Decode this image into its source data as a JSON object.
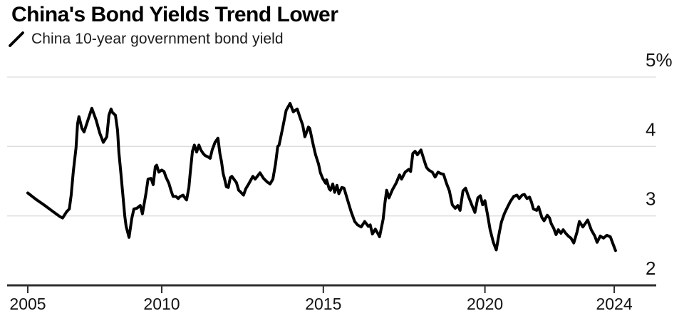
{
  "header": {
    "title": "China's Bond Yields Trend Lower"
  },
  "legend": {
    "label": "China 10-year government bond yield",
    "marker": "diagonal-line",
    "marker_color": "#000000"
  },
  "chart_data": {
    "type": "line",
    "title": "China's Bond Yields Trend Lower",
    "xlabel": "",
    "ylabel": "",
    "unit": "%",
    "xlim": [
      2005,
      2024.4
    ],
    "ylim": [
      2,
      5
    ],
    "grid": "horizontal",
    "legend_position": "top-left",
    "colors": {
      "line": "#000000",
      "grid": "#dcdcdc",
      "axis": "#2e2e2e",
      "tick_label": "#141414"
    },
    "y_ticks": [
      {
        "label": "5%",
        "value": 5,
        "gridline": true
      },
      {
        "label": "4",
        "value": 4,
        "gridline": true
      },
      {
        "label": "3",
        "value": 3,
        "gridline": true
      },
      {
        "label": "2",
        "value": 2,
        "gridline": false
      }
    ],
    "x_ticks": [
      {
        "label": "2005",
        "year": 2005
      },
      {
        "label": "2010",
        "year": 2010
      },
      {
        "label": "2015",
        "year": 2015
      },
      {
        "label": "2020",
        "year": 2020
      },
      {
        "label": "2024",
        "year": 2024
      }
    ],
    "series": [
      {
        "name": "China 10-year government bond yield",
        "color": "#000000",
        "points": [
          [
            2005.0,
            3.33
          ],
          [
            2005.3,
            3.24
          ],
          [
            2005.6,
            3.16
          ],
          [
            2005.95,
            3.06
          ],
          [
            2006.2,
            2.99
          ],
          [
            2006.3,
            2.97
          ],
          [
            2006.45,
            3.06
          ],
          [
            2006.55,
            3.1
          ],
          [
            2006.62,
            3.3
          ],
          [
            2006.7,
            3.64
          ],
          [
            2006.8,
            3.98
          ],
          [
            2006.86,
            4.33
          ],
          [
            2006.91,
            4.43
          ],
          [
            2007.02,
            4.26
          ],
          [
            2007.1,
            4.21
          ],
          [
            2007.23,
            4.36
          ],
          [
            2007.39,
            4.55
          ],
          [
            2007.55,
            4.38
          ],
          [
            2007.69,
            4.19
          ],
          [
            2007.82,
            4.06
          ],
          [
            2007.95,
            4.14
          ],
          [
            2008.03,
            4.45
          ],
          [
            2008.11,
            4.54
          ],
          [
            2008.16,
            4.49
          ],
          [
            2008.27,
            4.45
          ],
          [
            2008.35,
            4.23
          ],
          [
            2008.4,
            3.92
          ],
          [
            2008.48,
            3.6
          ],
          [
            2008.54,
            3.34
          ],
          [
            2008.62,
            3.0
          ],
          [
            2008.67,
            2.85
          ],
          [
            2008.78,
            2.69
          ],
          [
            2008.88,
            2.96
          ],
          [
            2008.96,
            3.1
          ],
          [
            2009.07,
            3.11
          ],
          [
            2009.2,
            3.15
          ],
          [
            2009.28,
            3.03
          ],
          [
            2009.41,
            3.32
          ],
          [
            2009.49,
            3.53
          ],
          [
            2009.6,
            3.54
          ],
          [
            2009.68,
            3.45
          ],
          [
            2009.76,
            3.71
          ],
          [
            2009.81,
            3.73
          ],
          [
            2009.89,
            3.63
          ],
          [
            2010.0,
            3.66
          ],
          [
            2010.07,
            3.64
          ],
          [
            2010.13,
            3.56
          ],
          [
            2010.22,
            3.47
          ],
          [
            2010.29,
            3.36
          ],
          [
            2010.35,
            3.28
          ],
          [
            2010.44,
            3.28
          ],
          [
            2010.51,
            3.25
          ],
          [
            2010.57,
            3.28
          ],
          [
            2010.66,
            3.3
          ],
          [
            2010.73,
            3.25
          ],
          [
            2010.77,
            3.23
          ],
          [
            2010.84,
            3.41
          ],
          [
            2010.88,
            3.61
          ],
          [
            2010.95,
            3.93
          ],
          [
            2011.01,
            4.02
          ],
          [
            2011.08,
            3.92
          ],
          [
            2011.15,
            4.02
          ],
          [
            2011.21,
            3.95
          ],
          [
            2011.28,
            3.9
          ],
          [
            2011.34,
            3.87
          ],
          [
            2011.43,
            3.85
          ],
          [
            2011.5,
            3.83
          ],
          [
            2011.56,
            3.95
          ],
          [
            2011.65,
            4.06
          ],
          [
            2011.74,
            4.12
          ],
          [
            2011.8,
            3.9
          ],
          [
            2011.85,
            3.78
          ],
          [
            2011.9,
            3.61
          ],
          [
            2011.95,
            3.52
          ],
          [
            2012.0,
            3.42
          ],
          [
            2012.06,
            3.41
          ],
          [
            2012.12,
            3.55
          ],
          [
            2012.17,
            3.57
          ],
          [
            2012.23,
            3.53
          ],
          [
            2012.31,
            3.48
          ],
          [
            2012.38,
            3.37
          ],
          [
            2012.45,
            3.34
          ],
          [
            2012.53,
            3.3
          ],
          [
            2012.6,
            3.39
          ],
          [
            2012.69,
            3.46
          ],
          [
            2012.82,
            3.57
          ],
          [
            2012.89,
            3.53
          ],
          [
            2013.04,
            3.62
          ],
          [
            2013.15,
            3.54
          ],
          [
            2013.26,
            3.49
          ],
          [
            2013.35,
            3.46
          ],
          [
            2013.44,
            3.53
          ],
          [
            2013.52,
            3.75
          ],
          [
            2013.59,
            4.0
          ],
          [
            2013.63,
            4.02
          ],
          [
            2013.74,
            4.26
          ],
          [
            2013.85,
            4.52
          ],
          [
            2013.97,
            4.62
          ],
          [
            2014.07,
            4.5
          ],
          [
            2014.19,
            4.54
          ],
          [
            2014.3,
            4.39
          ],
          [
            2014.36,
            4.31
          ],
          [
            2014.43,
            4.14
          ],
          [
            2014.54,
            4.28
          ],
          [
            2014.58,
            4.26
          ],
          [
            2014.69,
            4.02
          ],
          [
            2014.76,
            3.88
          ],
          [
            2014.85,
            3.75
          ],
          [
            2014.91,
            3.62
          ],
          [
            2014.98,
            3.54
          ],
          [
            2015.07,
            3.47
          ],
          [
            2015.1,
            3.52
          ],
          [
            2015.18,
            3.39
          ],
          [
            2015.22,
            3.37
          ],
          [
            2015.29,
            3.46
          ],
          [
            2015.35,
            3.34
          ],
          [
            2015.42,
            3.44
          ],
          [
            2015.48,
            3.32
          ],
          [
            2015.57,
            3.41
          ],
          [
            2015.64,
            3.4
          ],
          [
            2015.75,
            3.23
          ],
          [
            2015.86,
            3.06
          ],
          [
            2015.97,
            2.92
          ],
          [
            2016.06,
            2.87
          ],
          [
            2016.17,
            2.84
          ],
          [
            2016.28,
            2.92
          ],
          [
            2016.39,
            2.85
          ],
          [
            2016.45,
            2.87
          ],
          [
            2016.52,
            2.74
          ],
          [
            2016.61,
            2.81
          ],
          [
            2016.67,
            2.76
          ],
          [
            2016.74,
            2.7
          ],
          [
            2016.85,
            2.95
          ],
          [
            2016.91,
            3.2
          ],
          [
            2016.96,
            3.37
          ],
          [
            2017.03,
            3.26
          ],
          [
            2017.14,
            3.38
          ],
          [
            2017.25,
            3.47
          ],
          [
            2017.36,
            3.59
          ],
          [
            2017.42,
            3.53
          ],
          [
            2017.53,
            3.63
          ],
          [
            2017.64,
            3.67
          ],
          [
            2017.7,
            3.64
          ],
          [
            2017.77,
            3.9
          ],
          [
            2017.84,
            3.93
          ],
          [
            2017.91,
            3.88
          ],
          [
            2018.02,
            3.95
          ],
          [
            2018.12,
            3.8
          ],
          [
            2018.19,
            3.7
          ],
          [
            2018.26,
            3.66
          ],
          [
            2018.37,
            3.63
          ],
          [
            2018.46,
            3.56
          ],
          [
            2018.55,
            3.63
          ],
          [
            2018.63,
            3.61
          ],
          [
            2018.72,
            3.6
          ],
          [
            2018.81,
            3.47
          ],
          [
            2018.9,
            3.36
          ],
          [
            2018.99,
            3.16
          ],
          [
            2019.08,
            3.11
          ],
          [
            2019.16,
            3.15
          ],
          [
            2019.23,
            3.08
          ],
          [
            2019.32,
            3.36
          ],
          [
            2019.4,
            3.4
          ],
          [
            2019.49,
            3.28
          ],
          [
            2019.6,
            3.15
          ],
          [
            2019.69,
            3.05
          ],
          [
            2019.78,
            3.26
          ],
          [
            2019.86,
            3.29
          ],
          [
            2019.93,
            3.16
          ],
          [
            2020.0,
            3.22
          ],
          [
            2020.08,
            3.02
          ],
          [
            2020.16,
            2.8
          ],
          [
            2020.26,
            2.62
          ],
          [
            2020.35,
            2.51
          ],
          [
            2020.44,
            2.75
          ],
          [
            2020.51,
            2.91
          ],
          [
            2020.6,
            3.03
          ],
          [
            2020.7,
            3.13
          ],
          [
            2020.79,
            3.21
          ],
          [
            2020.89,
            3.28
          ],
          [
            2020.99,
            3.3
          ],
          [
            2021.06,
            3.25
          ],
          [
            2021.15,
            3.3
          ],
          [
            2021.22,
            3.31
          ],
          [
            2021.3,
            3.25
          ],
          [
            2021.38,
            3.27
          ],
          [
            2021.44,
            3.2
          ],
          [
            2021.5,
            3.1
          ],
          [
            2021.6,
            3.08
          ],
          [
            2021.66,
            3.13
          ],
          [
            2021.76,
            2.98
          ],
          [
            2021.83,
            2.93
          ],
          [
            2021.93,
            3.01
          ],
          [
            2022.0,
            2.97
          ],
          [
            2022.05,
            2.89
          ],
          [
            2022.13,
            2.82
          ],
          [
            2022.2,
            2.73
          ],
          [
            2022.27,
            2.8
          ],
          [
            2022.35,
            2.75
          ],
          [
            2022.42,
            2.8
          ],
          [
            2022.5,
            2.75
          ],
          [
            2022.58,
            2.71
          ],
          [
            2022.66,
            2.68
          ],
          [
            2022.75,
            2.61
          ],
          [
            2022.85,
            2.77
          ],
          [
            2022.92,
            2.92
          ],
          [
            2023.03,
            2.84
          ],
          [
            2023.18,
            2.94
          ],
          [
            2023.29,
            2.8
          ],
          [
            2023.4,
            2.71
          ],
          [
            2023.47,
            2.62
          ],
          [
            2023.57,
            2.71
          ],
          [
            2023.67,
            2.68
          ],
          [
            2023.77,
            2.72
          ],
          [
            2023.88,
            2.7
          ],
          [
            2023.96,
            2.6
          ],
          [
            2024.04,
            2.5
          ]
        ]
      }
    ]
  }
}
